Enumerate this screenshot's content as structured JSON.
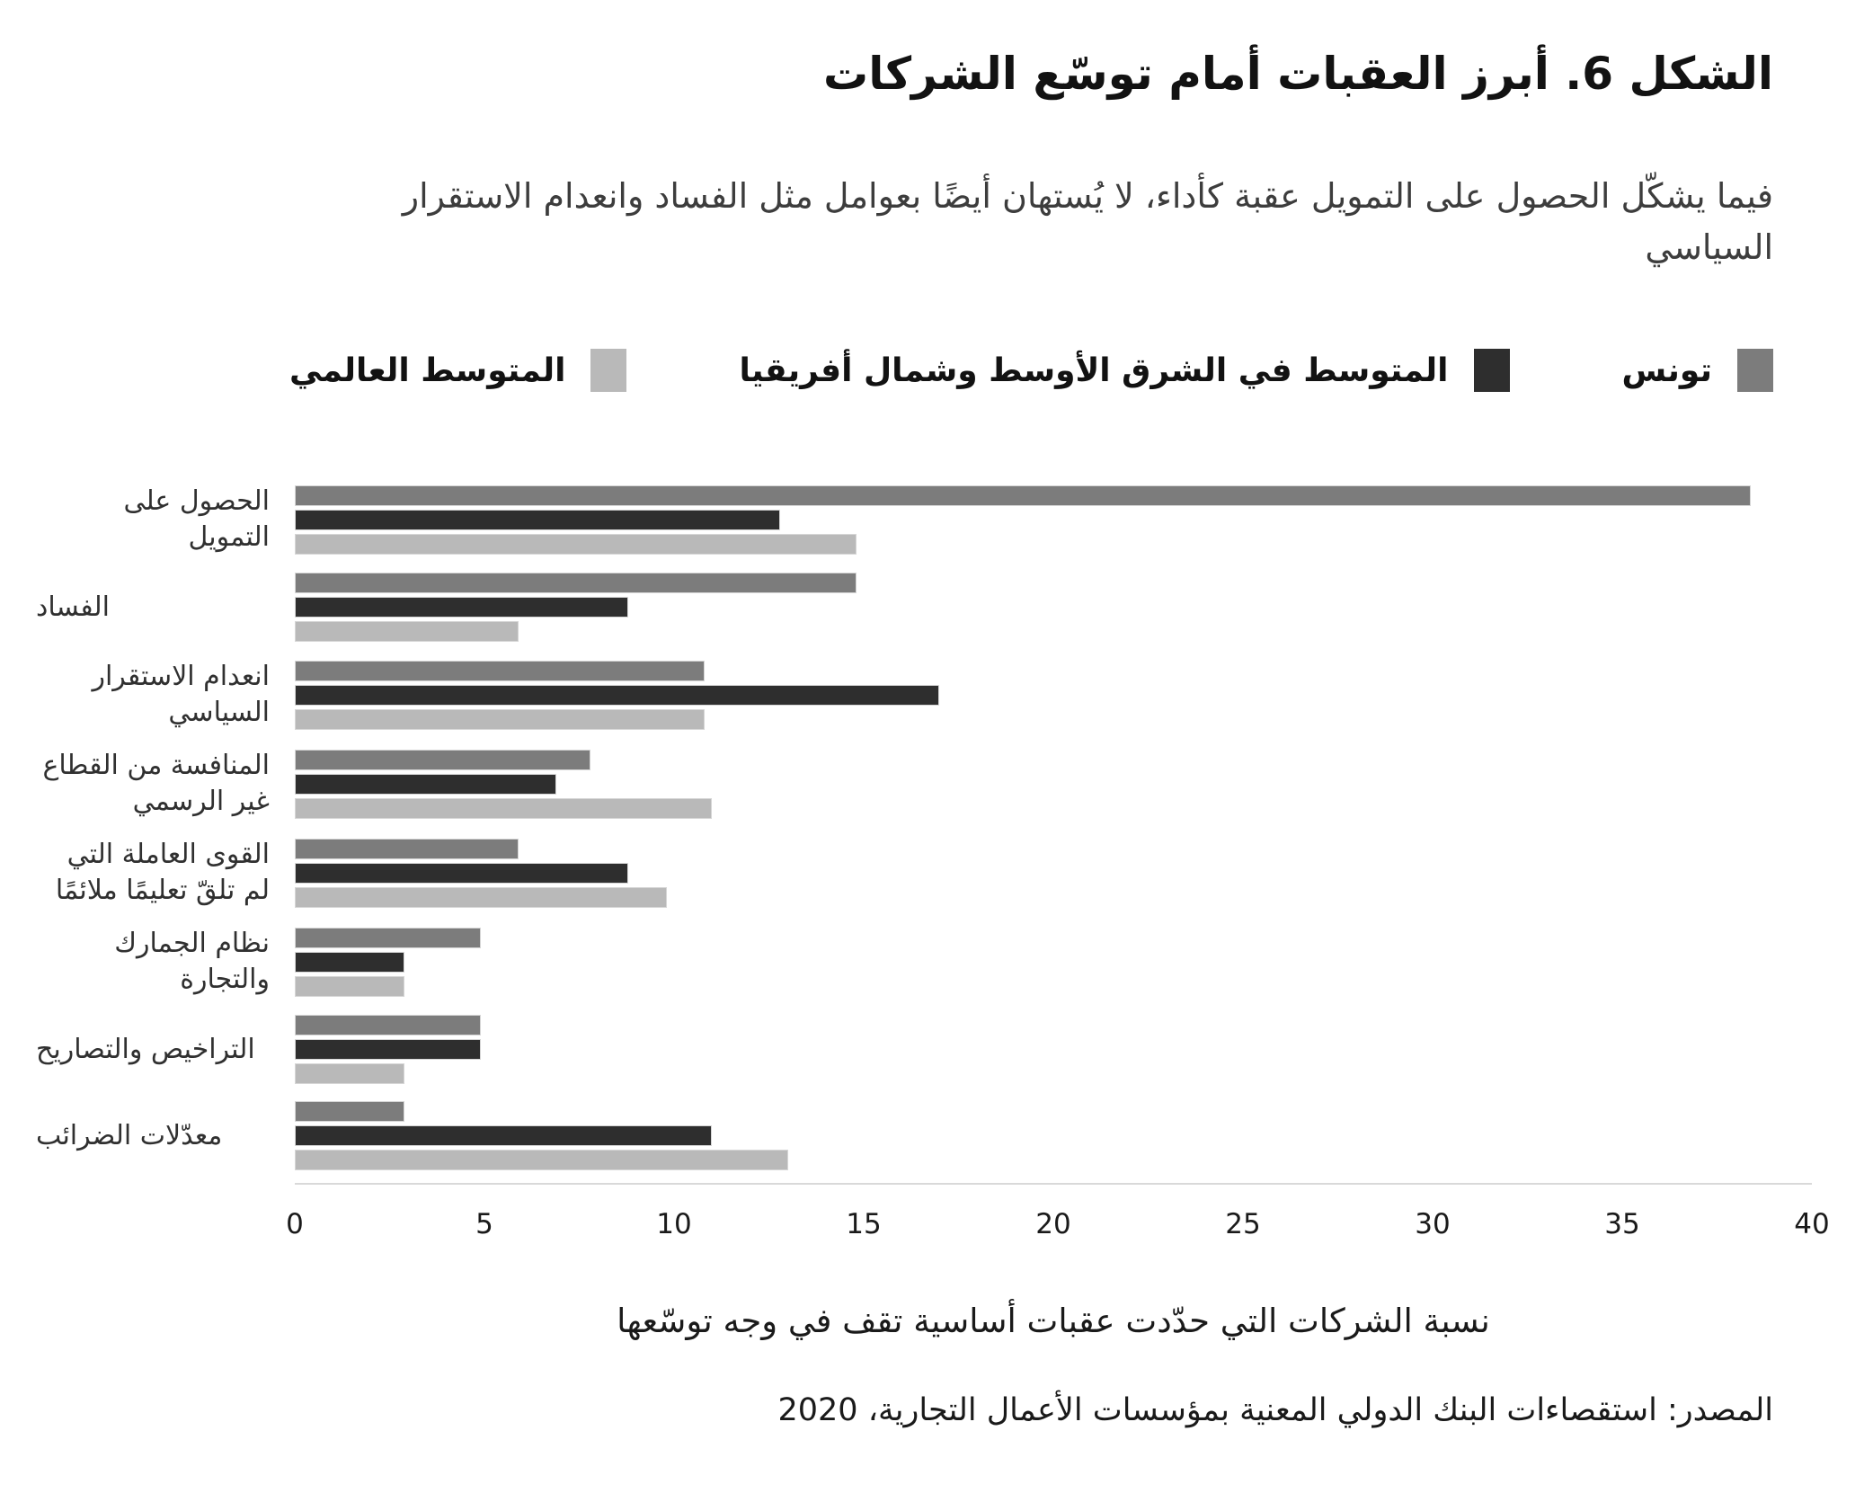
{
  "figure": {
    "title": "الشكل 6. أبرز العقبات أمام توسّع الشركات",
    "subtitle": "فيما يشكّل الحصول على التمويل عقبة كأداء، لا يُستهان أيضًا بعوامل مثل الفساد وانعدام الاستقرار السياسي",
    "xaxis_title": "نسبة الشركات التي حدّدت عقبات أساسية تقف في وجه توسّعها",
    "source": "المصدر: استقصاءات البنك الدولي المعنية بمؤسسات الأعمال التجارية، 2020"
  },
  "colors": {
    "tunisia": "#7c7c7c",
    "mena": "#2e2e2e",
    "world": "#b9b9b9",
    "bar_edge": "#d6d6d6",
    "axis_line": "#d9d9d9"
  },
  "chart_data": {
    "type": "bar",
    "orientation": "horizontal",
    "title": "الشكل 6. أبرز العقبات أمام توسّع الشركات",
    "xlabel": "نسبة الشركات التي حدّدت عقبات أساسية تقف في وجه توسّعها",
    "xlim": [
      0,
      40
    ],
    "xticks": [
      0,
      5,
      10,
      15,
      20,
      25,
      30,
      35,
      40
    ],
    "grid": false,
    "legend_position": "top",
    "categories": [
      "الحصول على التمويل",
      "الفساد",
      "انعدام الاستقرار السياسي",
      "المنافسة من القطاع غير الرسمي",
      "القوى العاملة التي لم تلقّ تعليمًا ملائمًا",
      "نظام الجمارك والتجارة",
      "التراخيص والتصاريح",
      "معدّلات الضرائب"
    ],
    "series": [
      {
        "name": "تونس",
        "key": "tunisia",
        "color": "#7c7c7c",
        "values": [
          38.4,
          14.8,
          10.8,
          7.8,
          5.9,
          4.9,
          4.9,
          2.9
        ]
      },
      {
        "name": "المتوسط في الشرق الأوسط وشمال أفريقيا",
        "key": "mena",
        "color": "#2e2e2e",
        "values": [
          12.8,
          8.8,
          17.0,
          6.9,
          8.8,
          2.9,
          4.9,
          11.0
        ]
      },
      {
        "name": "المتوسط العالمي",
        "key": "world",
        "color": "#b9b9b9",
        "values": [
          14.8,
          5.9,
          10.8,
          11.0,
          9.8,
          2.9,
          2.9,
          13.0
        ]
      }
    ]
  }
}
